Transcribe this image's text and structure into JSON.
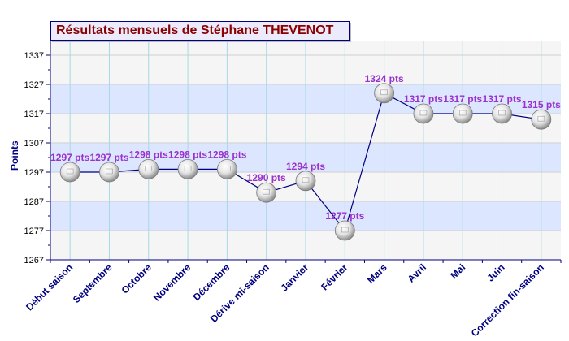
{
  "chart_data": {
    "type": "line",
    "title": "Résultats mensuels de Stéphane THEVENOT",
    "xlabel": "",
    "ylabel": "Points",
    "ylim": [
      1267,
      1342
    ],
    "yticks": [
      1267,
      1277,
      1287,
      1297,
      1307,
      1317,
      1327,
      1337
    ],
    "grid": true,
    "legend": "none",
    "categories": [
      "Début saison",
      "Septembre",
      "Octobre",
      "Novembre",
      "Décembre",
      "Dérive mi-saison",
      "Janvier",
      "Février",
      "Mars",
      "Avril",
      "Mai",
      "Juin",
      "Correction fin-saison"
    ],
    "series": [
      {
        "values": [
          1297,
          1297,
          1298,
          1298,
          1298,
          1290,
          1294,
          1277,
          1324,
          1317,
          1317,
          1317,
          1315
        ],
        "labels": [
          "1297 pts",
          "1297 pts",
          "1298 pts",
          "1298 pts",
          "1298 pts",
          "1290 pts",
          "1294 pts",
          "1277 pts",
          "1324 pts",
          "1317 pts",
          "1317 pts",
          "1317 pts",
          "1315 pts"
        ]
      }
    ],
    "colors": {
      "line": "#000080",
      "axis": "#000080",
      "label": "#9932cc",
      "band": "#dde6ff",
      "plot_bg": "#f5f5f5",
      "title_text": "#8b0000"
    }
  }
}
